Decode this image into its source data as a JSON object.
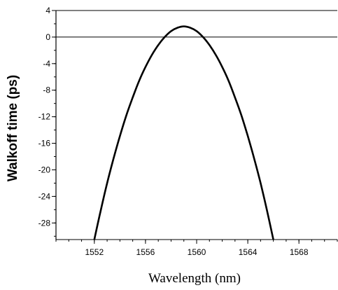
{
  "chart_data": {
    "type": "line",
    "title": "",
    "xlabel": "Wavelength (nm)",
    "ylabel": "Walkoff time (ps)",
    "xlim": [
      1549,
      1571
    ],
    "ylim": [
      -30.5,
      4
    ],
    "x_ticks": [
      {
        "value": 1552,
        "label": "1552"
      },
      {
        "value": 1556,
        "label": "1556"
      },
      {
        "value": 1560,
        "label": "1560"
      },
      {
        "value": 1564,
        "label": "1564"
      },
      {
        "value": 1568,
        "label": "1568"
      }
    ],
    "y_ticks": [
      {
        "value": 4,
        "label": "4"
      },
      {
        "value": 0,
        "label": "0"
      },
      {
        "value": -4,
        "label": "-4"
      },
      {
        "value": -8,
        "label": "-8"
      },
      {
        "value": -12,
        "label": "-12"
      },
      {
        "value": -16,
        "label": "-16"
      },
      {
        "value": -20,
        "label": "-20"
      },
      {
        "value": -24,
        "label": "-24"
      },
      {
        "value": -28,
        "label": "-28"
      }
    ],
    "x_minor_step": 1,
    "y_minor_step": 2,
    "reference_line_y": 0,
    "grid": false,
    "legend": "none",
    "series": [
      {
        "x": [
          1552.0,
          1552.5,
          1553.0,
          1553.5,
          1554.0,
          1554.5,
          1555.0,
          1555.5,
          1556.0,
          1556.5,
          1557.0,
          1557.5,
          1558.0,
          1558.5,
          1559.0,
          1559.5,
          1560.0,
          1560.5,
          1561.0,
          1561.5,
          1562.0,
          1562.5,
          1563.0,
          1563.5,
          1564.0,
          1564.5,
          1565.0,
          1565.5,
          1566.0
        ],
        "y": [
          -30.5,
          -26.1,
          -22.0,
          -18.3,
          -14.9,
          -11.8,
          -9.1,
          -6.6,
          -4.5,
          -2.7,
          -1.2,
          0.0,
          0.9,
          1.4,
          1.6,
          1.4,
          0.9,
          0.0,
          -1.2,
          -2.7,
          -4.5,
          -6.6,
          -9.1,
          -11.8,
          -14.9,
          -18.3,
          -22.0,
          -26.1,
          -30.5
        ]
      }
    ]
  },
  "colors": {
    "line": "#000000",
    "axis": "#000000",
    "background": "#ffffff"
  }
}
